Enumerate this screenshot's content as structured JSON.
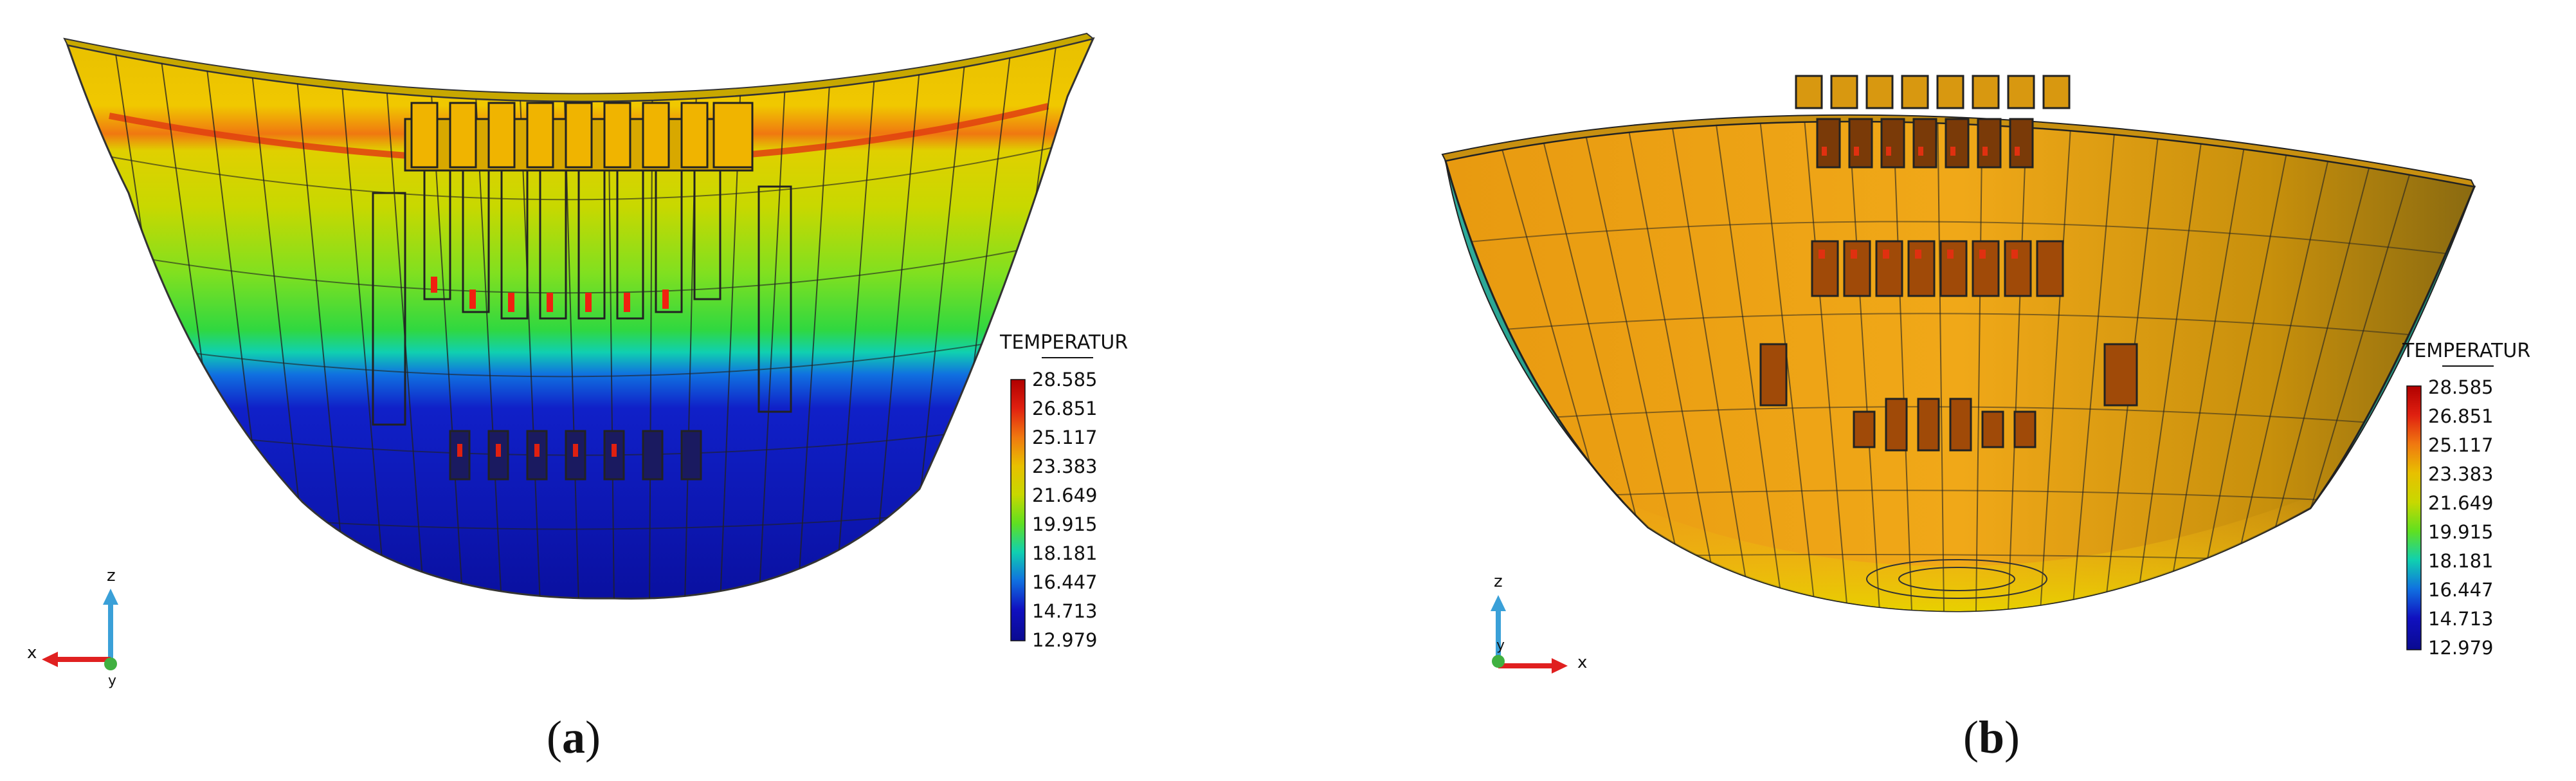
{
  "panels": [
    {
      "id": "a",
      "caption": {
        "open": "(",
        "letter": "a",
        "close": ")"
      },
      "legend": {
        "title": "TEMPERATUR",
        "values": [
          "28.585",
          "26.851",
          "25.117",
          "23.383",
          "21.649",
          "19.915",
          "18.181",
          "16.447",
          "14.713",
          "12.979"
        ]
      },
      "axes": {
        "vertical": "z",
        "horizontal": "x",
        "depth": "y"
      }
    },
    {
      "id": "b",
      "caption": {
        "open": "(",
        "letter": "b",
        "close": ")"
      },
      "legend": {
        "title": "TEMPERATUR",
        "values": [
          "28.585",
          "26.851",
          "25.117",
          "23.383",
          "21.649",
          "19.915",
          "18.181",
          "16.447",
          "14.713",
          "12.979"
        ]
      },
      "axes": {
        "vertical": "z",
        "horizontal": "x",
        "depth": "y"
      }
    }
  ],
  "colormap": [
    "#b00000",
    "#e02010",
    "#f07810",
    "#e8c000",
    "#c8d800",
    "#60e020",
    "#10d0b0",
    "#1070e0",
    "#1010c0",
    "#0a0a90"
  ]
}
